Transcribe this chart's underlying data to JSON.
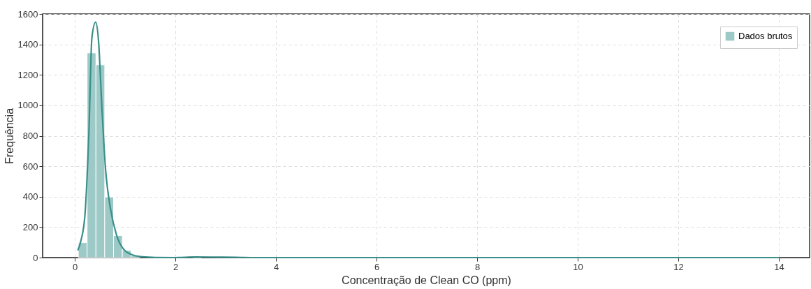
{
  "chart_data": {
    "type": "histogram",
    "xlabel": "Concentração de Clean CO (ppm)",
    "ylabel": "Frequência",
    "bins": [
      0.07,
      0.245,
      0.42,
      0.595,
      0.77,
      0.945,
      1.12,
      1.295,
      1.47,
      1.645,
      1.82,
      1.995,
      2.17,
      2.345,
      2.52,
      2.695,
      2.87,
      3.045,
      3.22,
      3.395,
      3.57,
      3.745,
      3.92,
      4.095,
      4.27,
      4.445,
      4.62,
      4.795,
      4.97,
      5.145,
      5.32,
      5.495,
      5.67,
      5.845,
      6.02,
      6.195,
      6.37,
      6.545,
      6.72,
      6.895,
      7.07,
      7.245,
      7.42,
      7.595,
      7.77,
      7.945,
      8.12,
      8.295,
      8.47,
      8.645,
      8.82,
      8.995,
      9.17,
      9.345,
      9.52,
      9.695,
      9.87,
      10.045,
      10.22,
      10.395,
      10.57,
      10.745,
      10.92,
      11.095,
      11.27,
      11.445,
      11.62,
      11.795,
      11.97,
      12.145,
      12.32,
      12.495,
      12.67,
      12.845,
      13.02,
      13.195,
      13.37,
      13.545,
      13.72,
      13.895,
      14.07
    ],
    "series": [
      {
        "name": "Dados brutos",
        "color": "#9dc9c6",
        "values": [
          98,
          1344,
          1266,
          398,
          145,
          47,
          12,
          null,
          null,
          1,
          0,
          0,
          0,
          2,
          0,
          0,
          0,
          0,
          null,
          0,
          0,
          0,
          0,
          0,
          0,
          0,
          0,
          0,
          0,
          0,
          0,
          0,
          0,
          0,
          0,
          0,
          0,
          0,
          0,
          0,
          0,
          0,
          0,
          0,
          0,
          0,
          0,
          0,
          0,
          0,
          0,
          0,
          0,
          0,
          0,
          0,
          0,
          0,
          0,
          0,
          0,
          0,
          0,
          0,
          0,
          0,
          0,
          0,
          0,
          0,
          0,
          0,
          0,
          0,
          0,
          0,
          0,
          0,
          0,
          null
        ]
      },
      {
        "type": "line",
        "color": "#3a8f8a",
        "x": [
          0.06,
          0.12,
          0.2,
          0.28,
          0.34,
          0.415,
          0.47,
          0.54,
          0.61,
          0.71,
          0.83,
          0.97,
          1.16,
          1.35,
          1.6,
          2.0,
          2.4,
          2.8,
          3.2,
          3.6,
          4.0,
          14.0
        ],
        "values": [
          47,
          109,
          273,
          820,
          1445,
          1547,
          1430,
          977,
          586,
          320,
          148,
          55,
          16,
          5,
          1,
          0,
          4,
          3,
          2,
          0,
          0,
          0
        ]
      }
    ],
    "xlim": [
      -0.64,
      14.61
    ],
    "xticks": [
      0,
      2,
      4,
      6,
      8,
      10,
      12,
      14
    ],
    "ylim": [
      0,
      1600
    ],
    "yticks": [
      0,
      200,
      400,
      600,
      800,
      1000,
      1200,
      1400,
      1600
    ],
    "grid": true,
    "legend": "top right"
  }
}
